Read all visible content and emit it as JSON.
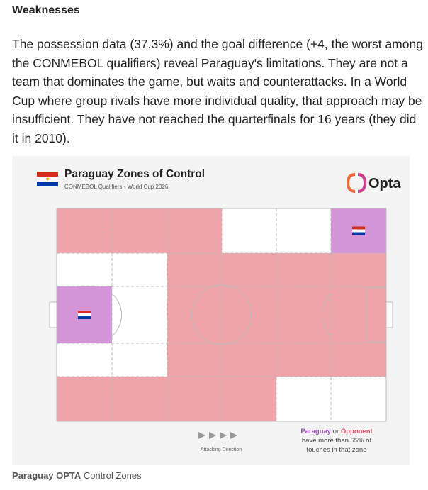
{
  "heading": "Weaknesses",
  "paragraph": "The possession data (37.3%) and the goal difference (+4, the worst among the CONMEBOL qualifiers) reveal Paraguay's limitations. They are not a team that dominates the game, but waits and counterattacks. In a World Cup where group rivals have more individual quality, that approach may be insufficient. They have not reached the quarterfinals for 16 years (they did it in 2010).",
  "graphic": {
    "title": "Paraguay Zones of Control",
    "subtitle": "CONMEBOL Qualifiers - World Cup 2026",
    "logo": "Opta",
    "legend": {
      "team": "Paraguay",
      "or": "or",
      "opponent": "Opponent",
      "lines": [
        "have more than 55% of",
        "touches in that zone"
      ]
    },
    "direction": "Attacking Direction"
  },
  "caption": {
    "bold": "Paraguay OPTA",
    "text": "Control Zones"
  }
}
